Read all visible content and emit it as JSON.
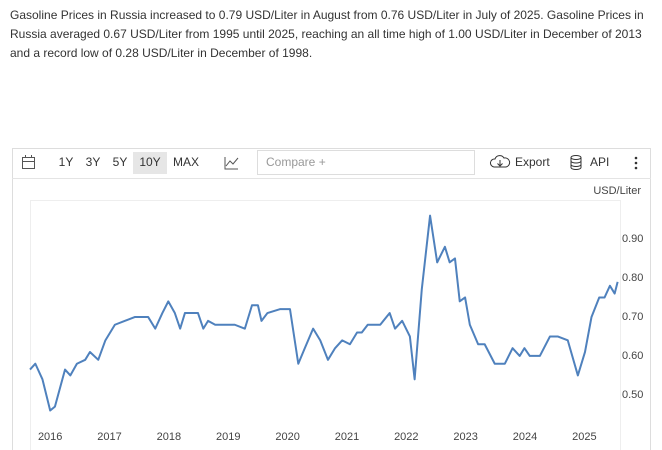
{
  "description": "Gasoline Prices in Russia increased to 0.79 USD/Liter in August from 0.76 USD/Liter in July of 2025. Gasoline Prices in Russia averaged 0.67 USD/Liter from 1995 until 2025, reaching an all time high of 1.00 USD/Liter in December of 2013 and a record low of 0.28 USD/Liter in December of 1998.",
  "toolbar": {
    "ranges": [
      "1Y",
      "3Y",
      "5Y",
      "10Y",
      "MAX"
    ],
    "active_range": 3,
    "compare_placeholder": "Compare +",
    "export": "Export",
    "api": "API"
  },
  "chart_data": {
    "type": "line",
    "unit_label": "USD/Liter",
    "color": "#4f81bd",
    "x": [
      2015.66,
      2015.75,
      2015.87,
      2016.0,
      2016.08,
      2016.25,
      2016.34,
      2016.45,
      2016.59,
      2016.67,
      2016.81,
      2016.93,
      2017.09,
      2017.26,
      2017.43,
      2017.65,
      2017.77,
      2017.89,
      2017.99,
      2018.1,
      2018.19,
      2018.27,
      2018.49,
      2018.58,
      2018.66,
      2018.78,
      2019.11,
      2019.28,
      2019.4,
      2019.5,
      2019.56,
      2019.66,
      2019.87,
      2020.04,
      2020.18,
      2020.29,
      2020.43,
      2020.55,
      2020.68,
      2020.8,
      2020.92,
      2021.05,
      2021.17,
      2021.25,
      2021.35,
      2021.56,
      2021.72,
      2021.81,
      2021.93,
      2022.06,
      2022.14,
      2022.26,
      2022.4,
      2022.52,
      2022.65,
      2022.73,
      2022.82,
      2022.9,
      2022.99,
      2023.07,
      2023.21,
      2023.32,
      2023.49,
      2023.66,
      2023.79,
      2023.91,
      2023.99,
      2024.08,
      2024.25,
      2024.42,
      2024.55,
      2024.72,
      2024.89,
      2025.01,
      2025.12,
      2025.25,
      2025.34,
      2025.43,
      2025.51,
      2025.56
    ],
    "values": [
      0.565,
      0.58,
      0.54,
      0.46,
      0.47,
      0.565,
      0.55,
      0.58,
      0.59,
      0.61,
      0.59,
      0.64,
      0.68,
      0.69,
      0.7,
      0.7,
      0.67,
      0.71,
      0.74,
      0.71,
      0.67,
      0.71,
      0.71,
      0.67,
      0.69,
      0.68,
      0.68,
      0.67,
      0.73,
      0.73,
      0.69,
      0.71,
      0.72,
      0.72,
      0.58,
      0.62,
      0.67,
      0.64,
      0.59,
      0.62,
      0.64,
      0.63,
      0.66,
      0.66,
      0.68,
      0.68,
      0.71,
      0.67,
      0.69,
      0.65,
      0.54,
      0.77,
      0.96,
      0.84,
      0.88,
      0.84,
      0.85,
      0.74,
      0.75,
      0.68,
      0.63,
      0.63,
      0.58,
      0.58,
      0.62,
      0.6,
      0.62,
      0.6,
      0.6,
      0.65,
      0.65,
      0.64,
      0.55,
      0.61,
      0.7,
      0.75,
      0.75,
      0.78,
      0.76,
      0.79
    ],
    "xlim": [
      2015.66,
      2025.6
    ],
    "ylim": [
      0.41,
      1.0
    ],
    "xticks": [
      2016,
      2017,
      2018,
      2019,
      2020,
      2021,
      2022,
      2023,
      2024,
      2025
    ],
    "yticks": [
      {
        "value": 0.5,
        "label": "0.50"
      },
      {
        "value": 0.6,
        "label": "0.60"
      },
      {
        "value": 0.7,
        "label": "0.70"
      },
      {
        "value": 0.8,
        "label": "0.80"
      },
      {
        "value": 0.9,
        "label": "0.90"
      }
    ]
  }
}
